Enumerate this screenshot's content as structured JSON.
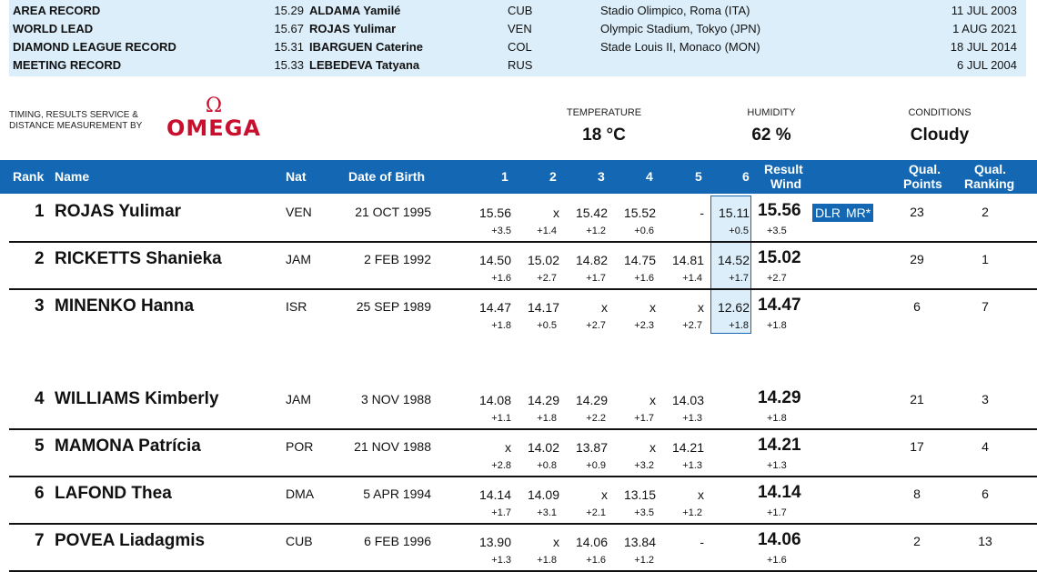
{
  "records": [
    {
      "label": "AREA RECORD",
      "perf": "15.29",
      "athlete": "ALDAMA Yamilé",
      "nat": "CUB",
      "venue": "Stadio Olimpico, Roma (ITA)",
      "date": "11 JUL 2003"
    },
    {
      "label": "WORLD LEAD",
      "perf": "15.67",
      "athlete": "ROJAS Yulimar",
      "nat": "VEN",
      "venue": "Olympic Stadium, Tokyo (JPN)",
      "date": "1 AUG 2021"
    },
    {
      "label": "DIAMOND LEAGUE RECORD",
      "perf": "15.31",
      "athlete": "IBARGUEN Caterine",
      "nat": "COL",
      "venue": "Stade Louis II, Monaco (MON)",
      "date": "18 JUL 2014"
    },
    {
      "label": "MEETING RECORD",
      "perf": "15.33",
      "athlete": "LEBEDEVA Tatyana",
      "nat": "RUS",
      "venue": "",
      "date": "6 JUL 2004"
    }
  ],
  "timing": {
    "line1": "TIMING, RESULTS SERVICE &",
    "line2": "DISTANCE MEASUREMENT BY",
    "logo_symbol": "Ω",
    "logo_word": "OMEGA"
  },
  "conditions": {
    "temperature_label": "TEMPERATURE",
    "temperature": "18 °C",
    "humidity_label": "HUMIDITY",
    "humidity": "62 %",
    "conditions_label": "CONDITIONS",
    "conditions": "Cloudy"
  },
  "headers": {
    "rank": "Rank",
    "name": "Name",
    "nat": "Nat",
    "dob": "Date of Birth",
    "a1": "1",
    "a2": "2",
    "a3": "3",
    "a4": "4",
    "a5": "5",
    "a6": "6",
    "result": "Result",
    "wind": "Wind",
    "qual_points_1": "Qual.",
    "qual_points_2": "Points",
    "qual_rank_1": "Qual.",
    "qual_rank_2": "Ranking"
  },
  "results": [
    {
      "rank": "1",
      "name": "ROJAS Yulimar",
      "nat": "VEN",
      "dob": "21 OCT 1995",
      "attempts": [
        "15.56",
        "x",
        "15.42",
        "15.52",
        "-",
        "15.11"
      ],
      "winds": [
        "+3.5",
        "+1.4",
        "+1.2",
        "+0.6",
        "",
        "+0.5"
      ],
      "result": "15.56",
      "result_wind": "+3.5",
      "badges": [
        "DLR",
        "MR*"
      ],
      "qual_points": "23",
      "qual_rank": "2"
    },
    {
      "rank": "2",
      "name": "RICKETTS Shanieka",
      "nat": "JAM",
      "dob": "2 FEB 1992",
      "attempts": [
        "14.50",
        "15.02",
        "14.82",
        "14.75",
        "14.81",
        "14.52"
      ],
      "winds": [
        "+1.6",
        "+2.7",
        "+1.7",
        "+1.6",
        "+1.4",
        "+1.7"
      ],
      "result": "15.02",
      "result_wind": "+2.7",
      "badges": [],
      "qual_points": "29",
      "qual_rank": "1"
    },
    {
      "rank": "3",
      "name": "MINENKO Hanna",
      "nat": "ISR",
      "dob": "25 SEP 1989",
      "attempts": [
        "14.47",
        "14.17",
        "x",
        "x",
        "x",
        "12.62"
      ],
      "winds": [
        "+1.8",
        "+0.5",
        "+2.7",
        "+2.3",
        "+2.7",
        "+1.8"
      ],
      "result": "14.47",
      "result_wind": "+1.8",
      "badges": [],
      "qual_points": "6",
      "qual_rank": "7"
    },
    {
      "rank": "4",
      "name": "WILLIAMS Kimberly",
      "nat": "JAM",
      "dob": "3 NOV 1988",
      "attempts": [
        "14.08",
        "14.29",
        "14.29",
        "x",
        "14.03",
        ""
      ],
      "winds": [
        "+1.1",
        "+1.8",
        "+2.2",
        "+1.7",
        "+1.3",
        ""
      ],
      "result": "14.29",
      "result_wind": "+1.8",
      "badges": [],
      "qual_points": "21",
      "qual_rank": "3"
    },
    {
      "rank": "5",
      "name": "MAMONA Patrícia",
      "nat": "POR",
      "dob": "21 NOV 1988",
      "attempts": [
        "x",
        "14.02",
        "13.87",
        "x",
        "14.21",
        ""
      ],
      "winds": [
        "+2.8",
        "+0.8",
        "+0.9",
        "+3.2",
        "+1.3",
        ""
      ],
      "result": "14.21",
      "result_wind": "+1.3",
      "badges": [],
      "qual_points": "17",
      "qual_rank": "4"
    },
    {
      "rank": "6",
      "name": "LAFOND Thea",
      "nat": "DMA",
      "dob": "5 APR 1994",
      "attempts": [
        "14.14",
        "14.09",
        "x",
        "13.15",
        "x",
        ""
      ],
      "winds": [
        "+1.7",
        "+3.1",
        "+2.1",
        "+3.5",
        "+1.2",
        ""
      ],
      "result": "14.14",
      "result_wind": "+1.7",
      "badges": [],
      "qual_points": "8",
      "qual_rank": "6"
    },
    {
      "rank": "7",
      "name": "POVEA Liadagmis",
      "nat": "CUB",
      "dob": "6 FEB 1996",
      "attempts": [
        "13.90",
        "x",
        "14.06",
        "13.84",
        "-",
        ""
      ],
      "winds": [
        "+1.3",
        "+1.8",
        "+1.6",
        "+1.2",
        "",
        ""
      ],
      "result": "14.06",
      "result_wind": "+1.6",
      "badges": [],
      "qual_points": "2",
      "qual_rank": "13"
    }
  ],
  "colors": {
    "header_blue": "#1468b3",
    "light_blue": "#dceefa",
    "omega_red": "#c8102e"
  }
}
